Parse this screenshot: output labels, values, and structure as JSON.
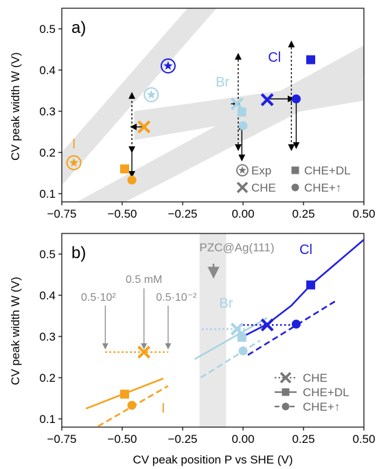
{
  "chart_data": [
    {
      "type": "scatter",
      "panel_label": "a)",
      "ylabel": "CV peak width W (V)",
      "xlim": [
        -0.75,
        0.5
      ],
      "ylim": [
        0.08,
        0.55
      ],
      "xticks": [
        "−0.75",
        "−0.50",
        "−0.25",
        "0.00",
        "0.25",
        "0.50"
      ],
      "yticks": [
        "0.1",
        "0.2",
        "0.3",
        "0.4",
        "0.5"
      ],
      "xtick_values": [
        -0.75,
        -0.5,
        -0.25,
        0.0,
        0.25,
        0.5
      ],
      "ytick_values": [
        0.1,
        0.2,
        0.3,
        0.4,
        0.5
      ],
      "colors": {
        "I": "#f5a11c",
        "Br": "#a8d4e6",
        "Cl": "#1f1fe0",
        "band": "#e4e4e4",
        "text_gray": "#8a8a8a"
      },
      "series": [
        {
          "name": "I",
          "label": "I",
          "label_x": -0.7,
          "label_y": 0.21,
          "Exp": [
            -0.7,
            0.175
          ],
          "CHE": [
            -0.41,
            0.262
          ],
          "CHE_DL": [
            -0.49,
            0.16
          ],
          "CHE_up": [
            -0.46,
            0.133
          ]
        },
        {
          "name": "Br",
          "label": "Br",
          "label_x": -0.085,
          "label_y": 0.36,
          "Exp": [
            -0.38,
            0.34
          ],
          "CHE": [
            -0.025,
            0.318
          ],
          "CHE_DL": [
            -0.005,
            0.298
          ],
          "CHE_up": [
            0.0,
            0.265
          ]
        },
        {
          "name": "Cl",
          "label": "Cl",
          "label_x": 0.13,
          "label_y": 0.42,
          "Exp": [
            -0.31,
            0.41
          ],
          "CHE": [
            0.1,
            0.328
          ],
          "CHE_DL": [
            0.28,
            0.425
          ],
          "CHE_up": [
            0.22,
            0.33
          ]
        }
      ],
      "legend": {
        "placement": "bottom-right",
        "entries": [
          "Exp",
          "CHE",
          "CHE+DL",
          "CHE+↑"
        ]
      }
    },
    {
      "type": "line",
      "panel_label": "b)",
      "xlabel": "CV peak position P vs SHE (V)",
      "ylabel": "CV peak width W (V)",
      "xlim": [
        -0.75,
        0.5
      ],
      "ylim": [
        0.08,
        0.55
      ],
      "xticks": [
        "−0.75",
        "−0.50",
        "−0.25",
        "0.00",
        "0.25",
        "0.50"
      ],
      "yticks": [
        "0.1",
        "0.2",
        "0.3",
        "0.4",
        "0.5"
      ],
      "xtick_values": [
        -0.75,
        -0.5,
        -0.25,
        0.0,
        0.25,
        0.5
      ],
      "ytick_values": [
        0.1,
        0.2,
        0.3,
        0.4,
        0.5
      ],
      "pzc_label": "PZC@Ag(111)",
      "pzc_range": [
        -0.18,
        -0.07
      ],
      "annotations": {
        "center": "0.5 mM",
        "left": "0.5·10²",
        "right": "0.5·10⁻²"
      },
      "series": [
        {
          "name": "I",
          "label": "I",
          "label_x": -0.33,
          "label_y": 0.115,
          "CHE": {
            "x": [
              -0.57,
              -0.31
            ],
            "y": [
              0.262,
              0.262
            ],
            "marker": [
              -0.41,
              0.262
            ]
          },
          "CHE_DL": {
            "x": [
              -0.65,
              -0.33
            ],
            "y": [
              0.125,
              0.198
            ],
            "marker": [
              -0.49,
              0.16
            ]
          },
          "CHE_up": {
            "x": [
              -0.6,
              -0.31
            ],
            "y": [
              0.082,
              0.18
            ],
            "marker": [
              -0.46,
              0.133
            ]
          }
        },
        {
          "name": "Br",
          "label": "Br",
          "label_x": -0.07,
          "label_y": 0.37,
          "CHE": {
            "x": [
              -0.17,
              0.02
            ],
            "y": [
              0.318,
              0.318
            ],
            "marker": [
              -0.025,
              0.318
            ]
          },
          "CHE_DL": {
            "x": [
              -0.2,
              0.1
            ],
            "y": [
              0.245,
              0.345
            ],
            "marker": [
              -0.005,
              0.298
            ]
          },
          "CHE_up": {
            "x": [
              -0.175,
              0.07
            ],
            "y": [
              0.2,
              0.29
            ],
            "marker": [
              0.0,
              0.265
            ]
          }
        },
        {
          "name": "Cl",
          "label": "Cl",
          "label_x": 0.26,
          "label_y": 0.5,
          "CHE": {
            "x": [
              0.0,
              0.22
            ],
            "y": [
              0.328,
              0.328
            ],
            "marker": [
              0.1,
              0.328
            ]
          },
          "CHE_DL": {
            "x": [
              0.0,
              0.1,
              0.2,
              0.28,
              0.38,
              0.5
            ],
            "y": [
              0.3,
              0.33,
              0.375,
              0.425,
              0.475,
              0.535
            ],
            "marker": [
              0.28,
              0.425
            ]
          },
          "CHE_up": {
            "x": [
              0.02,
              0.38
            ],
            "y": [
              0.255,
              0.385
            ],
            "marker": [
              0.22,
              0.33
            ]
          }
        }
      ],
      "legend": {
        "placement": "bottom-right",
        "entries": [
          "CHE",
          "CHE+DL",
          "CHE+↑"
        ]
      }
    }
  ]
}
